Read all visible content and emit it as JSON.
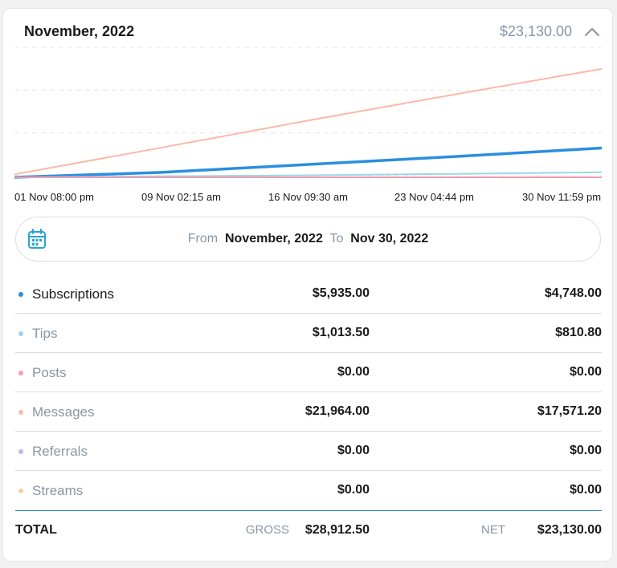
{
  "header": {
    "title": "November, 2022",
    "total": "$23,130.00"
  },
  "icons": {
    "collapse": "chevron-up-icon",
    "calendar": "calendar-icon"
  },
  "colors": {
    "subscriptions": "#2a8fe0",
    "tips": "#9ad8e6",
    "posts": "#f29bb1",
    "messages": "#fbb9a6",
    "referrals": "#c7b4e6",
    "streams": "#f8cd9c",
    "accent": "#2a87c7"
  },
  "chart_data": {
    "type": "line",
    "title": "",
    "x": [
      "01 Nov 08:00 pm",
      "09 Nov 02:15 am",
      "16 Nov 09:30 am",
      "23 Nov 04:44 pm",
      "30 Nov 11:59 pm"
    ],
    "x_tick_labels": [
      "01 Nov 08:00 pm",
      "09 Nov 02:15 am",
      "16 Nov 09:30 am",
      "23 Nov 04:44 pm",
      "30 Nov 11:59 pm"
    ],
    "ylim": [
      0,
      26000
    ],
    "grid": true,
    "series": [
      {
        "name": "Messages",
        "color": "#fbb9a6",
        "values": [
          600,
          6000,
          11500,
          16800,
          21964
        ]
      },
      {
        "name": "Subscriptions",
        "color": "#2a8fe0",
        "values": [
          0,
          1000,
          2600,
          4200,
          5935
        ]
      },
      {
        "name": "Tips",
        "color": "#9ad8e6",
        "values": [
          0,
          200,
          400,
          700,
          1013.5
        ]
      },
      {
        "name": "Posts",
        "color": "#f29bb1",
        "values": [
          0,
          0,
          0,
          0,
          0
        ]
      }
    ]
  },
  "range": {
    "from_label": "From",
    "from_value": "November, 2022",
    "to_label": "To",
    "to_value": "Nov 30, 2022"
  },
  "rows": [
    {
      "label": "Subscriptions",
      "gross": "$5,935.00",
      "net": "$4,748.00"
    },
    {
      "label": "Tips",
      "gross": "$1,013.50",
      "net": "$810.80"
    },
    {
      "label": "Posts",
      "gross": "$0.00",
      "net": "$0.00"
    },
    {
      "label": "Messages",
      "gross": "$21,964.00",
      "net": "$17,571.20"
    },
    {
      "label": "Referrals",
      "gross": "$0.00",
      "net": "$0.00"
    },
    {
      "label": "Streams",
      "gross": "$0.00",
      "net": "$0.00"
    }
  ],
  "totals": {
    "label": "TOTAL",
    "gross_label": "GROSS",
    "gross_value": "$28,912.50",
    "net_label": "NET",
    "net_value": "$23,130.00"
  }
}
